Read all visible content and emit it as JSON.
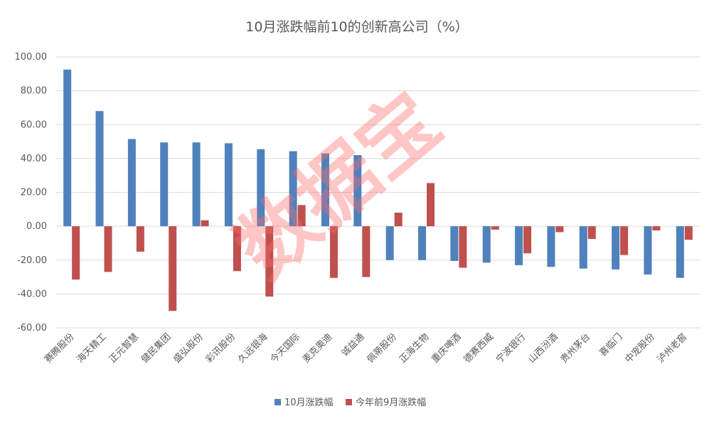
{
  "chart_data": {
    "type": "bar",
    "title": "10月涨跌幅前10的创新高公司（%）",
    "categories": [
      "赛腾股份",
      "海天精工",
      "正元智慧",
      "健民集团",
      "盛弘股份",
      "彩讯股份",
      "久远银海",
      "今天国际",
      "麦克奥迪",
      "诚益通",
      "佩蒂股份",
      "正海生物",
      "重庆啤酒",
      "德赛西威",
      "宁波银行",
      "山西汾酒",
      "贵州茅台",
      "喜临门",
      "中宠股份",
      "泸州老窖"
    ],
    "series": [
      {
        "name": "10月涨跌幅",
        "color": "#4f81bd",
        "values": [
          92.5,
          68.0,
          51.5,
          49.5,
          49.5,
          49.0,
          45.5,
          44.3,
          43.0,
          42.0,
          -20.0,
          -20.0,
          -20.5,
          -21.5,
          -23.0,
          -24.0,
          -25.0,
          -25.5,
          -28.5,
          -30.5
        ]
      },
      {
        "name": "今年前9月涨跌幅",
        "color": "#c0504d",
        "values": [
          -31.5,
          -27.0,
          -15.0,
          -50.0,
          3.5,
          -26.5,
          -41.5,
          12.5,
          -30.5,
          -30.0,
          8.0,
          25.5,
          -24.5,
          -2.0,
          -16.0,
          -3.5,
          -7.5,
          -17.0,
          -2.5,
          -8.0
        ]
      }
    ],
    "ylim": [
      -60,
      100
    ],
    "yticks": [
      "100.00",
      "80.00",
      "60.00",
      "40.00",
      "20.00",
      "0.00",
      "-20.00",
      "-40.00",
      "-60.00"
    ],
    "grid": true,
    "legend_position": "bottom"
  },
  "watermark": "数据宝"
}
